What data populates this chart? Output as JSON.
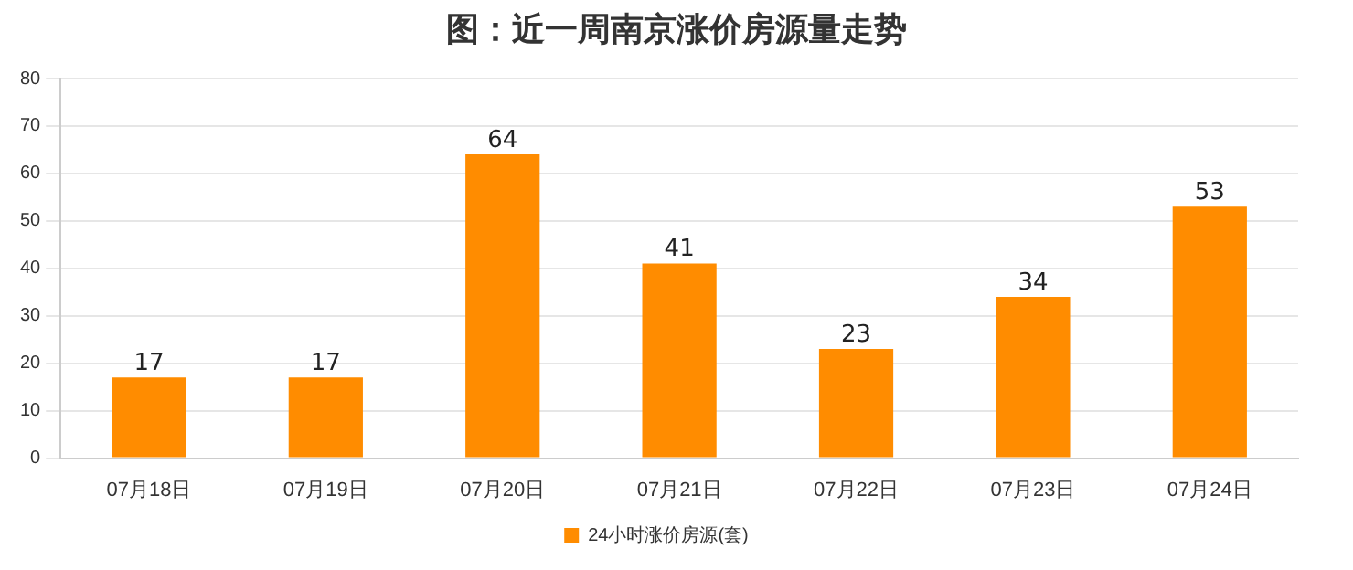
{
  "chart_data": {
    "type": "bar",
    "title": "图：近一周南京涨价房源量走势",
    "categories": [
      "07月18日",
      "07月19日",
      "07月20日",
      "07月21日",
      "07月22日",
      "07月23日",
      "07月24日"
    ],
    "series": [
      {
        "name": "24小时涨价房源(套)",
        "color": "#ff8c00",
        "values": [
          17,
          17,
          64,
          41,
          23,
          34,
          53
        ]
      }
    ],
    "ylim": [
      0,
      80
    ],
    "yticks": [
      0,
      10,
      20,
      30,
      40,
      50,
      60,
      70,
      80
    ],
    "grid": "y",
    "legend": "bottom",
    "data_labels": true
  }
}
